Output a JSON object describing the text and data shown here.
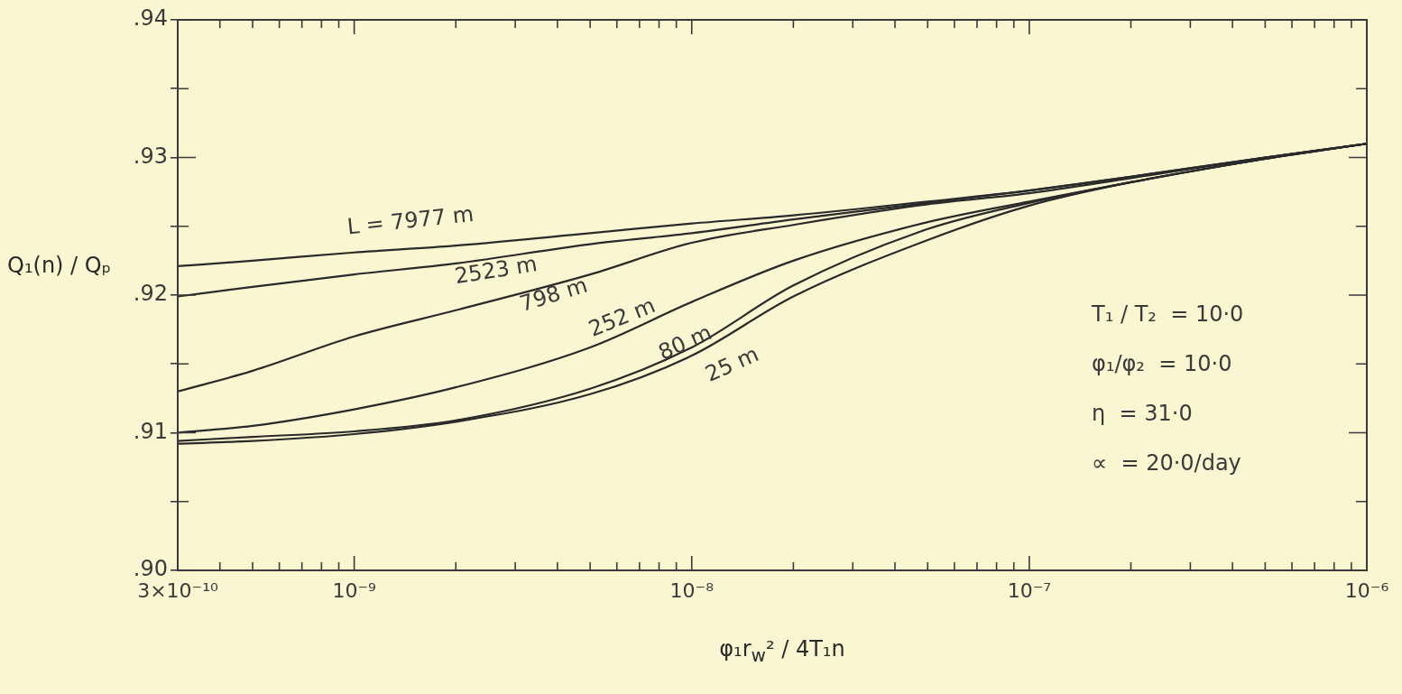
{
  "chart_data": {
    "type": "line",
    "xlabel": "φ₁r$_{w}$² / 4T₁n",
    "ylabel": "Q₁(n) / Qₚ",
    "x": [
      3e-10,
      5e-10,
      1e-09,
      2e-09,
      5e-09,
      1e-08,
      2e-08,
      5e-08,
      1e-07,
      2e-07,
      5e-07,
      1e-06
    ],
    "series": [
      {
        "color": "#2a2a2a",
        "values": [
          0.9221,
          0.9225,
          0.9231,
          0.9236,
          0.9245,
          0.9252,
          0.9258,
          0.9268,
          0.9276,
          0.9286,
          0.93,
          0.931
        ]
      },
      {
        "color": "#2a2a2a",
        "values": [
          0.9199,
          0.9206,
          0.9215,
          0.9223,
          0.9237,
          0.9245,
          0.9255,
          0.9267,
          0.9276,
          0.9286,
          0.93,
          0.931
        ]
      },
      {
        "color": "#2a2a2a",
        "values": [
          0.913,
          0.9145,
          0.917,
          0.9189,
          0.9215,
          0.9238,
          0.9251,
          0.9266,
          0.9274,
          0.9285,
          0.93,
          0.931
        ]
      },
      {
        "color": "#2a2a2a",
        "values": [
          0.91,
          0.9105,
          0.9117,
          0.9133,
          0.9162,
          0.9195,
          0.9225,
          0.9253,
          0.9268,
          0.9282,
          0.9299,
          0.931
        ]
      },
      {
        "color": "#2a2a2a",
        "values": [
          0.9094,
          0.9097,
          0.9101,
          0.9109,
          0.9132,
          0.9162,
          0.9207,
          0.9248,
          0.9267,
          0.9282,
          0.9299,
          0.931
        ]
      },
      {
        "color": "#2a2a2a",
        "values": [
          0.9092,
          0.9094,
          0.9099,
          0.9108,
          0.9128,
          0.9156,
          0.9199,
          0.924,
          0.9265,
          0.9282,
          0.9299,
          0.931
        ]
      }
    ],
    "xlim": [
      3e-10,
      1e-06
    ],
    "ylim": [
      0.9,
      0.94
    ],
    "log": "x",
    "grid": false,
    "legend": false,
    "xticks": [
      {
        "value": 3e-10,
        "label": "3×10⁻¹⁰"
      },
      {
        "value": 4e-10,
        "label": null
      },
      {
        "value": 5e-10,
        "label": null
      },
      {
        "value": 6e-10,
        "label": null
      },
      {
        "value": 7e-10,
        "label": null
      },
      {
        "value": 8e-10,
        "label": null
      },
      {
        "value": 9e-10,
        "label": null
      },
      {
        "value": 1e-09,
        "label": "10⁻⁹"
      },
      {
        "value": 2e-09,
        "label": null
      },
      {
        "value": 3e-09,
        "label": null
      },
      {
        "value": 4e-09,
        "label": null
      },
      {
        "value": 5e-09,
        "label": null
      },
      {
        "value": 6e-09,
        "label": null
      },
      {
        "value": 7e-09,
        "label": null
      },
      {
        "value": 8e-09,
        "label": null
      },
      {
        "value": 9e-09,
        "label": null
      },
      {
        "value": 1e-08,
        "label": "10⁻⁸"
      },
      {
        "value": 2e-08,
        "label": null
      },
      {
        "value": 3e-08,
        "label": null
      },
      {
        "value": 4e-08,
        "label": null
      },
      {
        "value": 5e-08,
        "label": null
      },
      {
        "value": 6e-08,
        "label": null
      },
      {
        "value": 7e-08,
        "label": null
      },
      {
        "value": 8e-08,
        "label": null
      },
      {
        "value": 9e-08,
        "label": null
      },
      {
        "value": 1e-07,
        "label": "10⁻⁷"
      },
      {
        "value": 2e-07,
        "label": null
      },
      {
        "value": 3e-07,
        "label": null
      },
      {
        "value": 4e-07,
        "label": null
      },
      {
        "value": 5e-07,
        "label": null
      },
      {
        "value": 6e-07,
        "label": null
      },
      {
        "value": 7e-07,
        "label": null
      },
      {
        "value": 8e-07,
        "label": null
      },
      {
        "value": 9e-07,
        "label": null
      },
      {
        "value": 1e-06,
        "label": "10⁻⁶"
      }
    ],
    "yticks": [
      {
        "value": 0.9,
        "label": ".90"
      },
      {
        "value": 0.905,
        "label": null
      },
      {
        "value": 0.91,
        "label": ".91"
      },
      {
        "value": 0.915,
        "label": null
      },
      {
        "value": 0.92,
        "label": ".92"
      },
      {
        "value": 0.925,
        "label": null
      },
      {
        "value": 0.93,
        "label": ".93"
      },
      {
        "value": 0.935,
        "label": null
      },
      {
        "value": 0.94,
        "label": ".94"
      }
    ],
    "annotations": [
      "L = 7977 m",
      "2523 m",
      "798 m",
      "252 m",
      "80 m",
      "25 m",
      "T₁ / T₂  = 10·0",
      "φ₁/φ₂  = 10·0",
      "η  = 31·0",
      "∝  = 20·0/day"
    ]
  }
}
